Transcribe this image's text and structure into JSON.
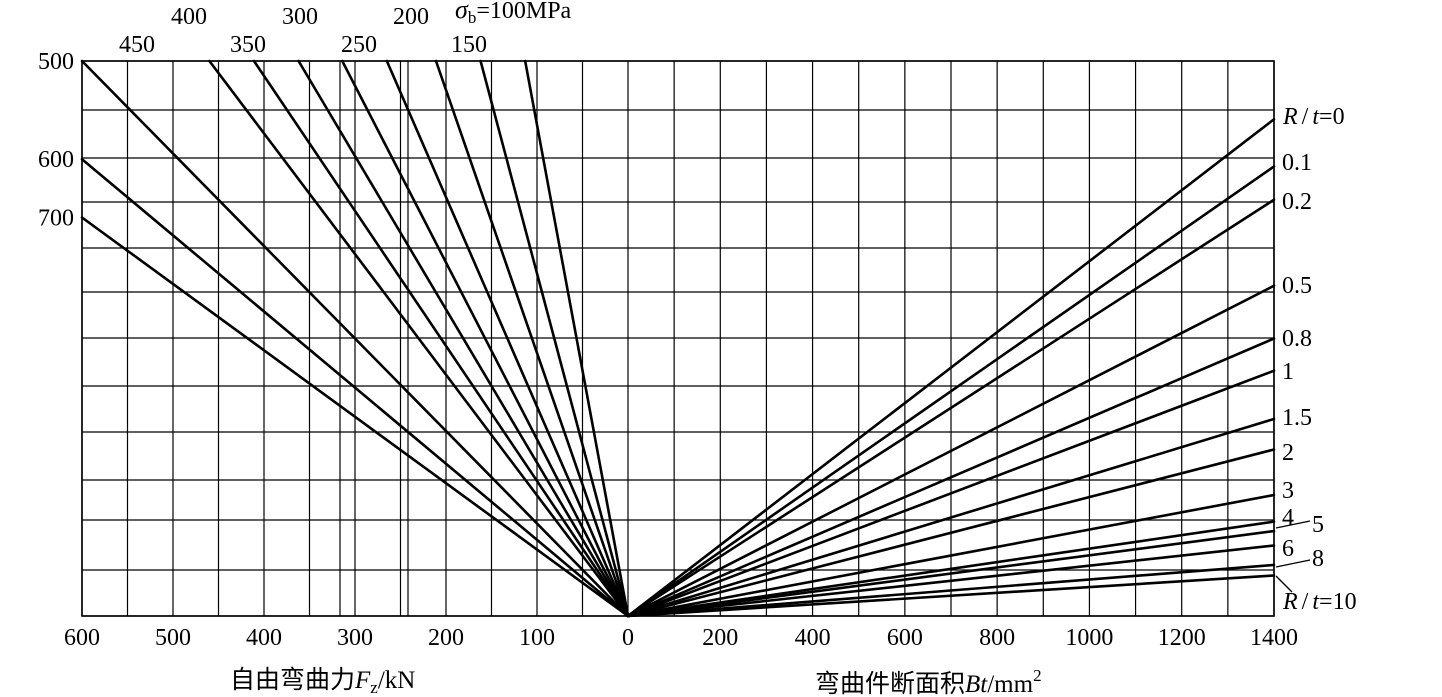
{
  "chart_data": {
    "type": "line",
    "title": "",
    "left_panel": {
      "xlabel": {
        "text": "自由弯曲力",
        "symbol": "F",
        "sub": "z",
        "unit": "/kN"
      },
      "x_ticks": [
        "600",
        "500",
        "400",
        "300",
        "200",
        "100",
        "0"
      ],
      "xlim": [
        600,
        0
      ],
      "y_scale_labels": [
        "500",
        "600",
        "700"
      ],
      "series_label_prefix": {
        "symbol": "σ",
        "sub": "b",
        "eq": "=100MPa"
      },
      "series": [
        {
          "name": "100",
          "label": "σb=100MPa",
          "x_at_top": 113
        },
        {
          "name": "150",
          "label": "150",
          "x_at_top": 162
        },
        {
          "name": "200",
          "label": "200",
          "x_at_top": 211
        },
        {
          "name": "250",
          "label": "250",
          "x_at_top": 265
        },
        {
          "name": "300",
          "label": "300",
          "x_at_top": 314
        },
        {
          "name": "350",
          "label": "350",
          "x_at_top": 362
        },
        {
          "name": "400",
          "label": "400",
          "x_at_top": 411
        },
        {
          "name": "450",
          "label": "450",
          "x_at_top": 460
        },
        {
          "name": "500",
          "label": "500",
          "x_at_top": 600
        },
        {
          "name": "600",
          "label": "600",
          "x_at_edge": 600,
          "y_frac": 0.823
        },
        {
          "name": "700",
          "label": "700",
          "x_at_edge": 600,
          "y_frac": 0.718
        }
      ]
    },
    "right_panel": {
      "xlabel": {
        "text": "弯曲件断面积",
        "symbol": "Bt",
        "unit": "/mm",
        "sup": "2"
      },
      "x_ticks": [
        "0",
        "200",
        "400",
        "600",
        "800",
        "1000",
        "1200",
        "1400"
      ],
      "xlim": [
        0,
        1400
      ],
      "series_label_prefix": {
        "symbol_r": "R",
        "slash": "/",
        "symbol_t": "t",
        "eq": "="
      },
      "series": [
        {
          "name": "0",
          "y_frac_at_1400": 0.895
        },
        {
          "name": "0.1",
          "y_frac_at_1400": 0.81
        },
        {
          "name": "0.2",
          "y_frac_at_1400": 0.75
        },
        {
          "name": "0.5",
          "y_frac_at_1400": 0.595
        },
        {
          "name": "0.8",
          "y_frac_at_1400": 0.5
        },
        {
          "name": "1",
          "y_frac_at_1400": 0.442
        },
        {
          "name": "1.5",
          "y_frac_at_1400": 0.355
        },
        {
          "name": "2",
          "y_frac_at_1400": 0.3
        },
        {
          "name": "3",
          "y_frac_at_1400": 0.218
        },
        {
          "name": "4",
          "y_frac_at_1400": 0.17
        },
        {
          "name": "5",
          "y_frac_at_1400": 0.153
        },
        {
          "name": "6",
          "y_frac_at_1400": 0.127
        },
        {
          "name": "8",
          "y_frac_at_1400": 0.092
        },
        {
          "name": "10",
          "y_frac_at_1400": 0.073
        }
      ]
    },
    "grid": true
  }
}
